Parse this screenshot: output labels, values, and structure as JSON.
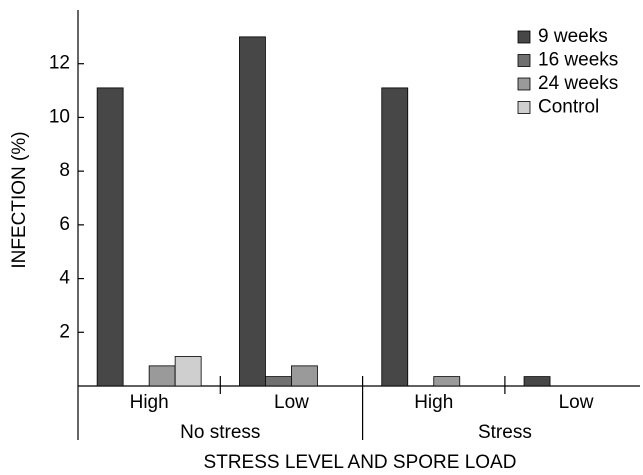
{
  "chart_data": {
    "type": "bar",
    "y_label": "INFECTION (%)",
    "x_label": "STRESS LEVEL AND SPORE LOAD",
    "categories": [
      "High",
      "Low",
      "High",
      "Low"
    ],
    "groups": [
      "No stress",
      "Stress"
    ],
    "series": [
      {
        "name": "9 weeks",
        "color": "#474747",
        "values": [
          11.1,
          13.0,
          11.1,
          0.35
        ]
      },
      {
        "name": "16 weeks",
        "color": "#707070",
        "values": [
          0,
          0.35,
          0,
          0
        ]
      },
      {
        "name": "24 weeks",
        "color": "#9a9a9a",
        "values": [
          0.75,
          0.75,
          0.35,
          0
        ]
      },
      {
        "name": "Control",
        "color": "#cfcfcf",
        "values": [
          1.1,
          0,
          0,
          0
        ]
      }
    ],
    "ylim": [
      0,
      14
    ],
    "yticks": [
      2,
      4,
      6,
      8,
      10,
      12
    ],
    "legend": "upper right"
  }
}
